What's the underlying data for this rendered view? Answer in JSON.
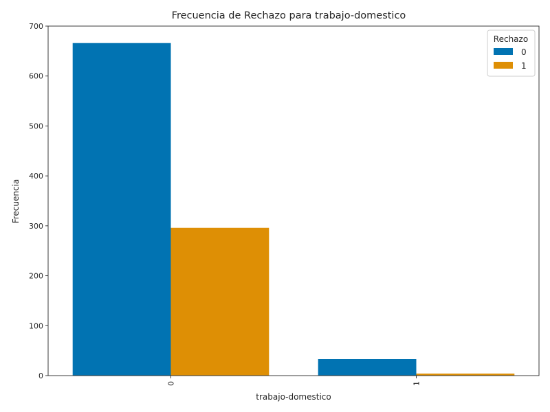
{
  "chart_data": {
    "type": "bar",
    "title": "Frecuencia de Rechazo para trabajo-domestico",
    "xlabel": "trabajo-domestico",
    "ylabel": "Frecuencia",
    "categories": [
      "0",
      "1"
    ],
    "series": [
      {
        "name": "0",
        "values": [
          666,
          33
        ],
        "color": "#0173b2"
      },
      {
        "name": "1",
        "values": [
          296,
          4
        ],
        "color": "#de8f05"
      }
    ],
    "ylim": [
      0,
      700
    ],
    "yticks": [
      "0",
      "100",
      "200",
      "300",
      "400",
      "500",
      "600",
      "700"
    ],
    "grid": false,
    "legend": {
      "title": "Rechazo",
      "placement": "top-right"
    }
  }
}
